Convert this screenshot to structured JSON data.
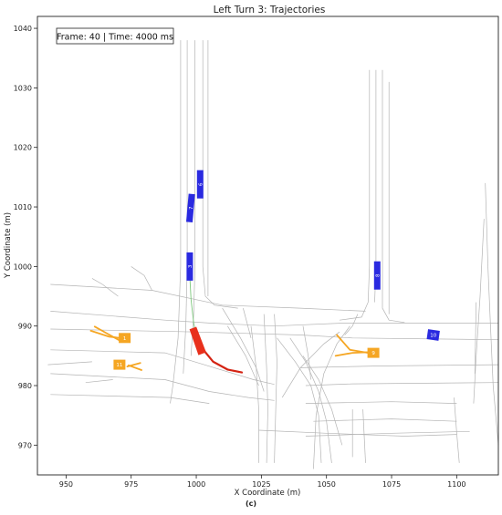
{
  "chart_data": {
    "type": "scatter",
    "title": "Left Turn 3: Trajectories",
    "xlabel": "X Coordinate (m)",
    "ylabel": "Y Coordinate (m)",
    "xlim": [
      939,
      1116
    ],
    "ylim": [
      965,
      1042
    ],
    "xticks": [
      950,
      975,
      1000,
      1025,
      1050,
      1075,
      1100
    ],
    "yticks": [
      970,
      980,
      990,
      1000,
      1010,
      1020,
      1030,
      1040
    ],
    "grid": false,
    "annotation": "Frame: 40 | Time: 4000 ms",
    "caption": "(c)",
    "colors": {
      "ego": "#e8301c",
      "other": "#2a2ae0",
      "turning": "#f5a623",
      "road": "#b4b4b4"
    },
    "ego": {
      "id": "",
      "x": 1000.5,
      "y": 987.5,
      "trajectory": [
        [
          1017.5,
          982.2
        ],
        [
          1012,
          982.7
        ],
        [
          1006.5,
          984.0
        ],
        [
          1003.3,
          985.7
        ],
        [
          1001.5,
          987.0
        ]
      ]
    },
    "vehicles": [
      {
        "id": "6",
        "x": 1001.5,
        "y": 1013.8,
        "angle": 90,
        "kind": "other"
      },
      {
        "id": "7",
        "x": 997.8,
        "y": 1009.8,
        "angle": 95,
        "kind": "other"
      },
      {
        "id": "3",
        "x": 997.5,
        "y": 1000.0,
        "angle": 90,
        "kind": "other"
      },
      {
        "id": "8",
        "x": 1069.5,
        "y": 998.5,
        "angle": 90,
        "kind": "other"
      },
      {
        "id": "10",
        "x": 1091.0,
        "y": 988.5,
        "angle": -8,
        "kind": "other"
      },
      {
        "id": "1",
        "x": 972.5,
        "y": 988.0,
        "angle": 0,
        "kind": "turning"
      },
      {
        "id": "11",
        "x": 970.5,
        "y": 983.5,
        "angle": 0,
        "kind": "turning"
      },
      {
        "id": "9",
        "x": 1068.0,
        "y": 985.5,
        "angle": 0,
        "kind": "turning"
      }
    ],
    "turning_trails": [
      [
        [
          959.5,
          989.2
        ],
        [
          966.5,
          988.2
        ],
        [
          971.0,
          988.0
        ]
      ],
      [
        [
          961.0,
          989.9
        ],
        [
          965.5,
          988.8
        ],
        [
          970.5,
          987.6
        ]
      ],
      [
        [
          973.5,
          983.2
        ],
        [
          978.5,
          983.8
        ]
      ],
      [
        [
          974.0,
          983.4
        ],
        [
          979.0,
          982.6
        ]
      ],
      [
        [
          1054.0,
          988.5
        ],
        [
          1059.0,
          986.0
        ],
        [
          1066.0,
          985.5
        ]
      ],
      [
        [
          1053.5,
          985.0
        ],
        [
          1060.0,
          985.5
        ],
        [
          1066.0,
          985.6
        ]
      ]
    ],
    "green_trail": [
      [
        997.5,
        998.5
      ],
      [
        998.0,
        994.5
      ],
      [
        999.0,
        990.5
      ],
      [
        1000.0,
        988.5
      ]
    ],
    "roads": [
      [
        [
          944,
          986.0
        ],
        [
          988,
          985.5
        ],
        [
          1003,
          983.5
        ],
        [
          1022,
          981.0
        ],
        [
          1030,
          980.2
        ]
      ],
      [
        [
          944,
          982.0
        ],
        [
          988,
          981.0
        ],
        [
          1005,
          979.0
        ],
        [
          1020,
          978.0
        ],
        [
          1030,
          977.5
        ]
      ],
      [
        [
          944,
          978.5
        ],
        [
          990,
          978.0
        ],
        [
          1005,
          977.0
        ]
      ],
      [
        [
          944,
          992.5
        ],
        [
          988,
          991.0
        ],
        [
          1005,
          990.5
        ],
        [
          1030,
          990.0
        ],
        [
          1057,
          990.5
        ],
        [
          1116,
          990.5
        ]
      ],
      [
        [
          944,
          989.5
        ],
        [
          1000,
          989.0
        ],
        [
          1040,
          988.5
        ],
        [
          1060,
          988.0
        ],
        [
          1116,
          987.7
        ]
      ],
      [
        [
          944,
          997.0
        ],
        [
          983,
          996.0
        ],
        [
          1010,
          993.5
        ],
        [
          1040,
          993.0
        ],
        [
          1065,
          992.5
        ]
      ],
      [
        [
          1042,
          980.0
        ],
        [
          1060,
          980.3
        ],
        [
          1116,
          980.5
        ]
      ],
      [
        [
          1040,
          983.0
        ],
        [
          1070,
          983.3
        ],
        [
          1116,
          983.5
        ]
      ],
      [
        [
          1042,
          977.0
        ],
        [
          1075,
          977.3
        ],
        [
          1100,
          977.0
        ]
      ],
      [
        [
          1045,
          974.0
        ],
        [
          1075,
          974.4
        ],
        [
          1100,
          974.0
        ]
      ],
      [
        [
          1042,
          971.5
        ],
        [
          1075,
          972.0
        ],
        [
          1105,
          972.3
        ]
      ],
      [
        [
          943,
          983.5
        ],
        [
          960,
          984.0
        ]
      ],
      [
        [
          957.5,
          980.5
        ],
        [
          968,
          981.0
        ]
      ],
      [
        [
          994,
          1038
        ],
        [
          994,
          1000
        ],
        [
          993,
          988
        ],
        [
          991,
          980
        ],
        [
          990.0,
          977
        ]
      ],
      [
        [
          996.5,
          1038
        ],
        [
          996.5,
          1000
        ],
        [
          996.0,
          990
        ],
        [
          995,
          982
        ]
      ],
      [
        [
          999.5,
          1038
        ],
        [
          999.5,
          1000
        ],
        [
          999.0,
          992
        ],
        [
          998,
          985
        ]
      ],
      [
        [
          1002.5,
          1038
        ],
        [
          1002.5,
          1000
        ],
        [
          1003.5,
          995
        ],
        [
          1007,
          993.5
        ],
        [
          1016,
          993.0
        ]
      ],
      [
        [
          1004.5,
          1038
        ],
        [
          1004.5,
          1000
        ],
        [
          1004.5,
          995
        ]
      ],
      [
        [
          1066.5,
          1033
        ],
        [
          1066.5,
          1000
        ],
        [
          1066.0,
          994
        ],
        [
          1063.5,
          991.5
        ],
        [
          1055,
          991.0
        ]
      ],
      [
        [
          1069.0,
          1033
        ],
        [
          1069.0,
          1000
        ],
        [
          1068.5,
          994
        ]
      ],
      [
        [
          1071.5,
          1033
        ],
        [
          1071.5,
          1000
        ],
        [
          1071.5,
          993
        ],
        [
          1074.0,
          991.0
        ],
        [
          1080,
          990.6
        ]
      ],
      [
        [
          1074.0,
          1031
        ],
        [
          1074.0,
          1000
        ],
        [
          1074.0,
          992.0
        ]
      ],
      [
        [
          1111,
          1014
        ],
        [
          1112,
          1000
        ],
        [
          1113,
          990
        ],
        [
          1114,
          980
        ],
        [
          1116,
          970
        ]
      ],
      [
        [
          1110.5,
          1008
        ],
        [
          1109,
          995
        ],
        [
          1107.5,
          985
        ],
        [
          1106.5,
          977
        ]
      ],
      [
        [
          1107.5,
          994
        ],
        [
          1107,
          982
        ]
      ],
      [
        [
          1021,
          990
        ],
        [
          1023,
          983
        ],
        [
          1024,
          976
        ],
        [
          1024,
          967
        ]
      ],
      [
        [
          1026,
          992
        ],
        [
          1027,
          983
        ],
        [
          1027.5,
          976
        ],
        [
          1027,
          967
        ]
      ],
      [
        [
          1030,
          992
        ],
        [
          1031,
          984
        ],
        [
          1030.5,
          976
        ],
        [
          1030,
          967
        ]
      ],
      [
        [
          1024,
          972.5
        ],
        [
          1050,
          972.0
        ],
        [
          1080,
          971.5
        ],
        [
          1100,
          971.8
        ]
      ],
      [
        [
          1010,
          993
        ],
        [
          1017,
          988
        ],
        [
          1023,
          983
        ],
        [
          1026,
          979
        ]
      ],
      [
        [
          1012,
          990
        ],
        [
          1019,
          985
        ],
        [
          1024,
          980
        ]
      ],
      [
        [
          1031,
          988
        ],
        [
          1038,
          984
        ],
        [
          1044,
          980
        ],
        [
          1047,
          975
        ],
        [
          1048,
          967
        ]
      ],
      [
        [
          1036,
          988
        ],
        [
          1042,
          984
        ],
        [
          1047,
          979
        ],
        [
          1050,
          974
        ],
        [
          1052,
          967
        ]
      ],
      [
        [
          1041,
          985
        ],
        [
          1047,
          981
        ],
        [
          1052,
          976
        ],
        [
          1056,
          970
        ]
      ],
      [
        [
          1033,
          978
        ],
        [
          1040,
          983
        ],
        [
          1049,
          987
        ],
        [
          1055,
          989
        ]
      ],
      [
        [
          1045,
          966
        ],
        [
          1046,
          975
        ],
        [
          1049,
          982
        ],
        [
          1054,
          987
        ],
        [
          1059,
          990
        ]
      ],
      [
        [
          1060,
          976
        ],
        [
          1060,
          968
        ]
      ],
      [
        [
          1064,
          976
        ],
        [
          1065,
          967
        ]
      ],
      [
        [
          1099,
          978
        ],
        [
          1100,
          972
        ],
        [
          1101,
          967
        ]
      ],
      [
        [
          960,
          998
        ],
        [
          964,
          997
        ],
        [
          970,
          995
        ]
      ],
      [
        [
          983,
          996
        ],
        [
          980,
          998.5
        ],
        [
          975,
          1000
        ]
      ],
      [
        [
          1018,
          993
        ],
        [
          1021,
          988
        ]
      ],
      [
        [
          1041,
          990
        ],
        [
          1043,
          985
        ],
        [
          1044,
          981
        ]
      ],
      [
        [
          1062,
          992
        ],
        [
          1060,
          990
        ],
        [
          1057,
          988.5
        ]
      ]
    ]
  }
}
